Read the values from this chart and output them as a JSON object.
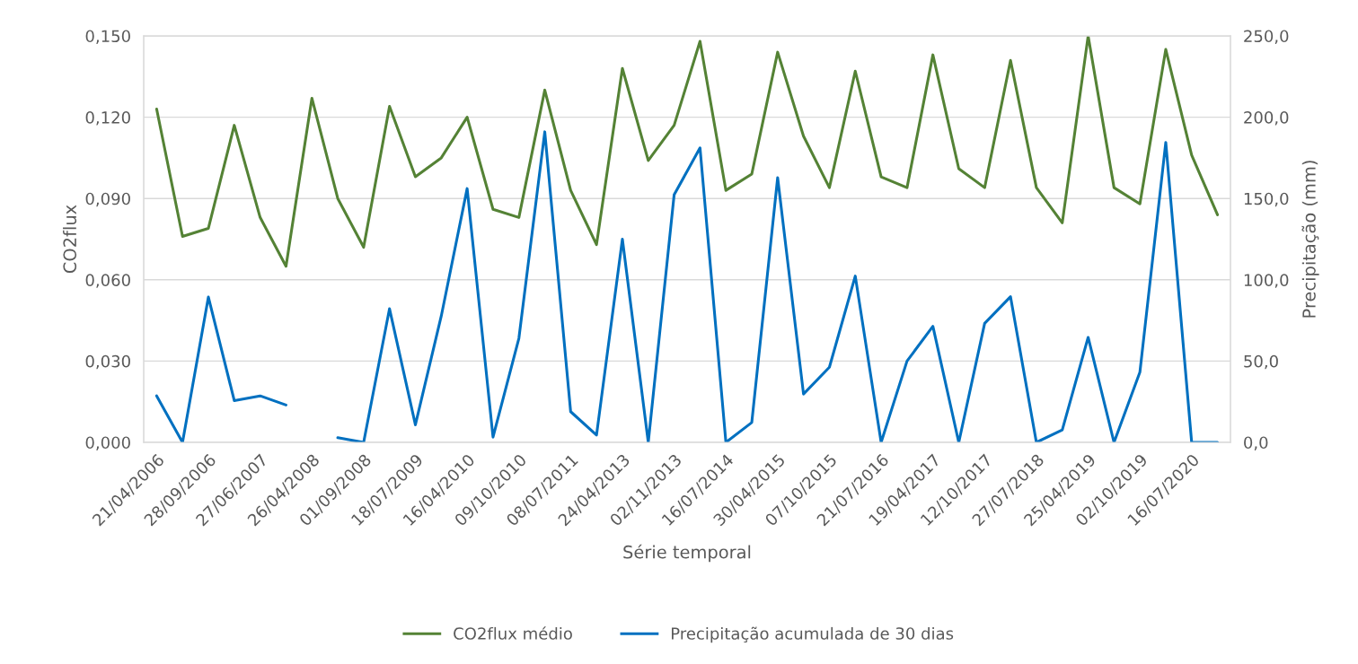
{
  "chart_data": {
    "type": "line",
    "xlabel": "Série temporal",
    "ylabel": "CO2flux",
    "y2label": "Precipitação (mm)",
    "categories": [
      "21/04/2006",
      null,
      "28/09/2006",
      null,
      "27/06/2007",
      null,
      "26/04/2008",
      null,
      "01/09/2008",
      null,
      "18/07/2009",
      null,
      "16/04/2010",
      null,
      "09/10/2010",
      null,
      "08/07/2011",
      null,
      "24/04/2013",
      null,
      "02/11/2013",
      null,
      "16/07/2014",
      null,
      "30/04/2015",
      null,
      "07/10/2015",
      null,
      "21/07/2016",
      null,
      "19/04/2017",
      null,
      "12/10/2017",
      null,
      "27/07/2018",
      null,
      "25/04/2019",
      null,
      "02/10/2019",
      null,
      "16/07/2020",
      null
    ],
    "series": [
      {
        "name": "CO2flux médio",
        "color": "#548235",
        "values": [
          0.123,
          0.076,
          0.079,
          0.117,
          0.083,
          0.065,
          0.127,
          0.09,
          0.072,
          0.124,
          0.098,
          0.105,
          0.12,
          0.086,
          0.083,
          0.13,
          0.093,
          0.073,
          0.138,
          0.104,
          0.117,
          0.148,
          0.093,
          0.099,
          0.144,
          0.113,
          0.094,
          0.137,
          0.098,
          0.094,
          0.143,
          0.101,
          0.094,
          0.141,
          0.094,
          0.081,
          0.15,
          0.094,
          0.088,
          0.145,
          0.106,
          0.084
        ]
      },
      {
        "name": "Precipitação acumulada de 30 dias",
        "color": "#0070c0",
        "axis": "y2",
        "values": [
          28.6,
          0.0,
          89.4,
          25.7,
          28.6,
          23.0,
          null,
          2.9,
          0.0,
          82.2,
          10.8,
          77.7,
          156.1,
          3.2,
          64.0,
          191.0,
          18.9,
          4.5,
          125.0,
          0.0,
          152.3,
          181.1,
          0.0,
          12.2,
          162.8,
          29.7,
          46.2,
          102.3,
          0.0,
          50.0,
          71.4,
          0.0,
          73.2,
          89.6,
          0.0,
          7.7,
          64.6,
          0.0,
          43.2,
          184.5,
          0.0,
          0.0
        ]
      }
    ],
    "ylim": [
      0,
      0.15
    ],
    "yticks": [
      {
        "value": 0,
        "label": "0,000"
      },
      {
        "value": 0.03,
        "label": "0,030"
      },
      {
        "value": 0.06,
        "label": "0,060"
      },
      {
        "value": 0.09,
        "label": "0,090"
      },
      {
        "value": 0.12,
        "label": "0,120"
      },
      {
        "value": 0.15,
        "label": "0,150"
      }
    ],
    "y2lim": [
      0,
      250
    ],
    "y2ticks": [
      {
        "value": 0,
        "label": "0,0"
      },
      {
        "value": 50,
        "label": "50,0"
      },
      {
        "value": 100,
        "label": "100,0"
      },
      {
        "value": 150,
        "label": "150,0"
      },
      {
        "value": 200,
        "label": "200,0"
      },
      {
        "value": 250,
        "label": "250,0"
      }
    ],
    "grid": "y",
    "legend": "bottom",
    "marker": "none",
    "line_style": "solid"
  }
}
